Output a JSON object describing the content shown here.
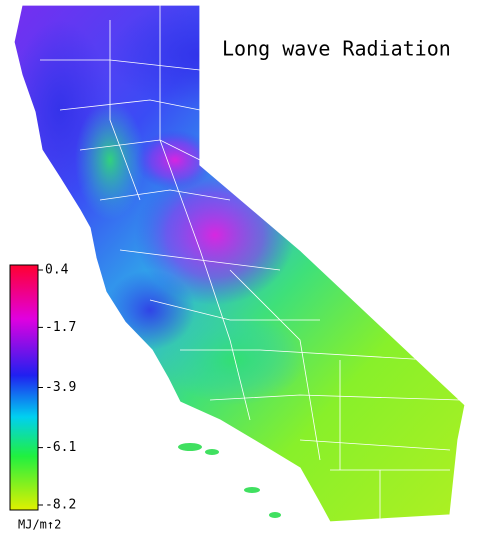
{
  "title": "Long wave Radiation",
  "colorbar": {
    "ticks": [
      0.4,
      -1.7,
      -3.9,
      -6.1,
      -8.2
    ],
    "unit": "MJ/m↑2"
  }
}
